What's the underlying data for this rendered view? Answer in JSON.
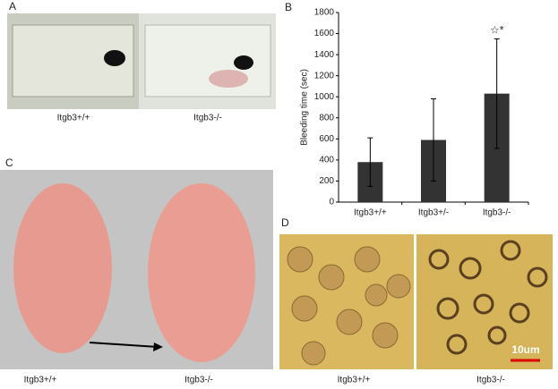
{
  "panels": {
    "a": {
      "letter": "A",
      "labels": [
        "Itgb3+/+",
        "Itgb3-/-"
      ]
    },
    "c": {
      "letter": "C",
      "labels": [
        "Itgb3+/+",
        "Itgb3-/-"
      ]
    },
    "d": {
      "letter": "D",
      "labels": [
        "Itgb3+/+",
        "Itgb3-/-"
      ],
      "scale_bar": "10um"
    }
  },
  "chart_data": {
    "type": "bar",
    "panel_letter": "B",
    "y_label": "Bleeding time (sec)",
    "categories": [
      "Itgb3+/+",
      "Itgb3+/-",
      "Itgb3-/-"
    ],
    "values": [
      380,
      590,
      1030
    ],
    "errors": [
      230,
      390,
      520
    ],
    "annotation": "☆*",
    "color": "#333333",
    "ylim": [
      0,
      1800
    ],
    "yticks": [
      0,
      200,
      400,
      600,
      800,
      1000,
      1200,
      1400,
      1600,
      1800
    ]
  }
}
